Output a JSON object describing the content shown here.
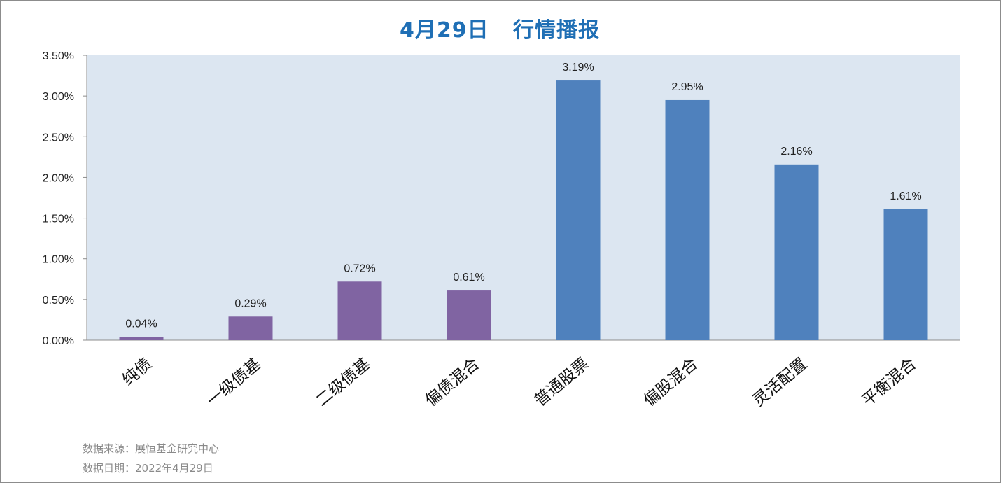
{
  "chart_data": {
    "type": "bar",
    "title_date": "4月29日",
    "title_text": "行情播报",
    "categories": [
      "纯债",
      "一级债基",
      "二级债基",
      "偏债混合",
      "普通股票",
      "偏股混合",
      "灵活配置",
      "平衡混合"
    ],
    "values": [
      0.04,
      0.29,
      0.72,
      0.61,
      3.19,
      2.95,
      2.16,
      1.61
    ],
    "data_labels": [
      "0.04%",
      "0.29%",
      "0.72%",
      "0.61%",
      "3.19%",
      "2.95%",
      "2.16%",
      "1.61%"
    ],
    "bar_colors": [
      "#8064a2",
      "#8064a2",
      "#8064a2",
      "#8064a2",
      "#4f81bd",
      "#4f81bd",
      "#4f81bd",
      "#4f81bd"
    ],
    "ylim": [
      0,
      3.5
    ],
    "yticks": [
      {
        "value": 0.0,
        "label": "0.00%"
      },
      {
        "value": 0.5,
        "label": "0.50%"
      },
      {
        "value": 1.0,
        "label": "1.00%"
      },
      {
        "value": 1.5,
        "label": "1.50%"
      },
      {
        "value": 2.0,
        "label": "2.00%"
      },
      {
        "value": 2.5,
        "label": "2.50%"
      },
      {
        "value": 3.0,
        "label": "3.00%"
      },
      {
        "value": 3.5,
        "label": "3.50%"
      }
    ],
    "plot_background": "#dce6f1",
    "grid": false,
    "xlabel": "",
    "ylabel": ""
  },
  "footer": {
    "source": "数据来源：展恒基金研究中心",
    "date": "数据日期：2022年4月29日"
  },
  "colors": {
    "title": "#1f6fb5"
  }
}
